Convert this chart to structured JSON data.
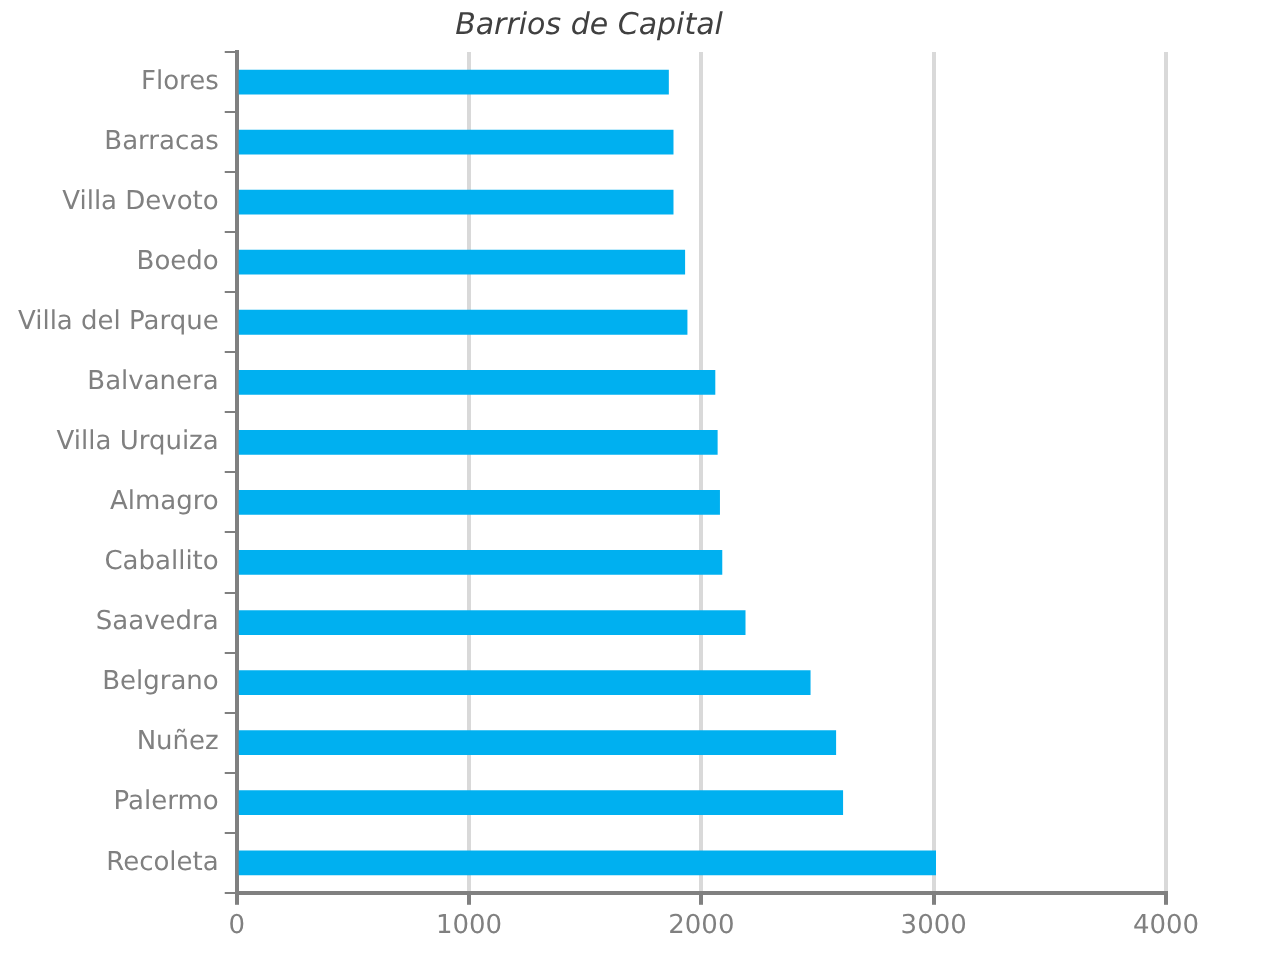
{
  "chart_data": {
    "type": "bar",
    "orientation": "horizontal",
    "title": "Barrios de Capital",
    "categories": [
      "Flores",
      "Barracas",
      "Villa Devoto",
      "Boedo",
      "Villa del Parque",
      "Balvanera",
      "Villa Urquiza",
      "Almagro",
      "Caballito",
      "Saavedra",
      "Belgrano",
      "Nuñez",
      "Palermo",
      "Recoleta"
    ],
    "values": [
      1860,
      1880,
      1880,
      1930,
      1940,
      2060,
      2070,
      2080,
      2090,
      2190,
      2470,
      2580,
      2610,
      3010
    ],
    "color": "#00b0f0",
    "xlim": [
      0,
      4000
    ],
    "xticks": [
      0,
      1000,
      2000,
      3000,
      4000
    ],
    "grid": "x",
    "legend": false
  }
}
